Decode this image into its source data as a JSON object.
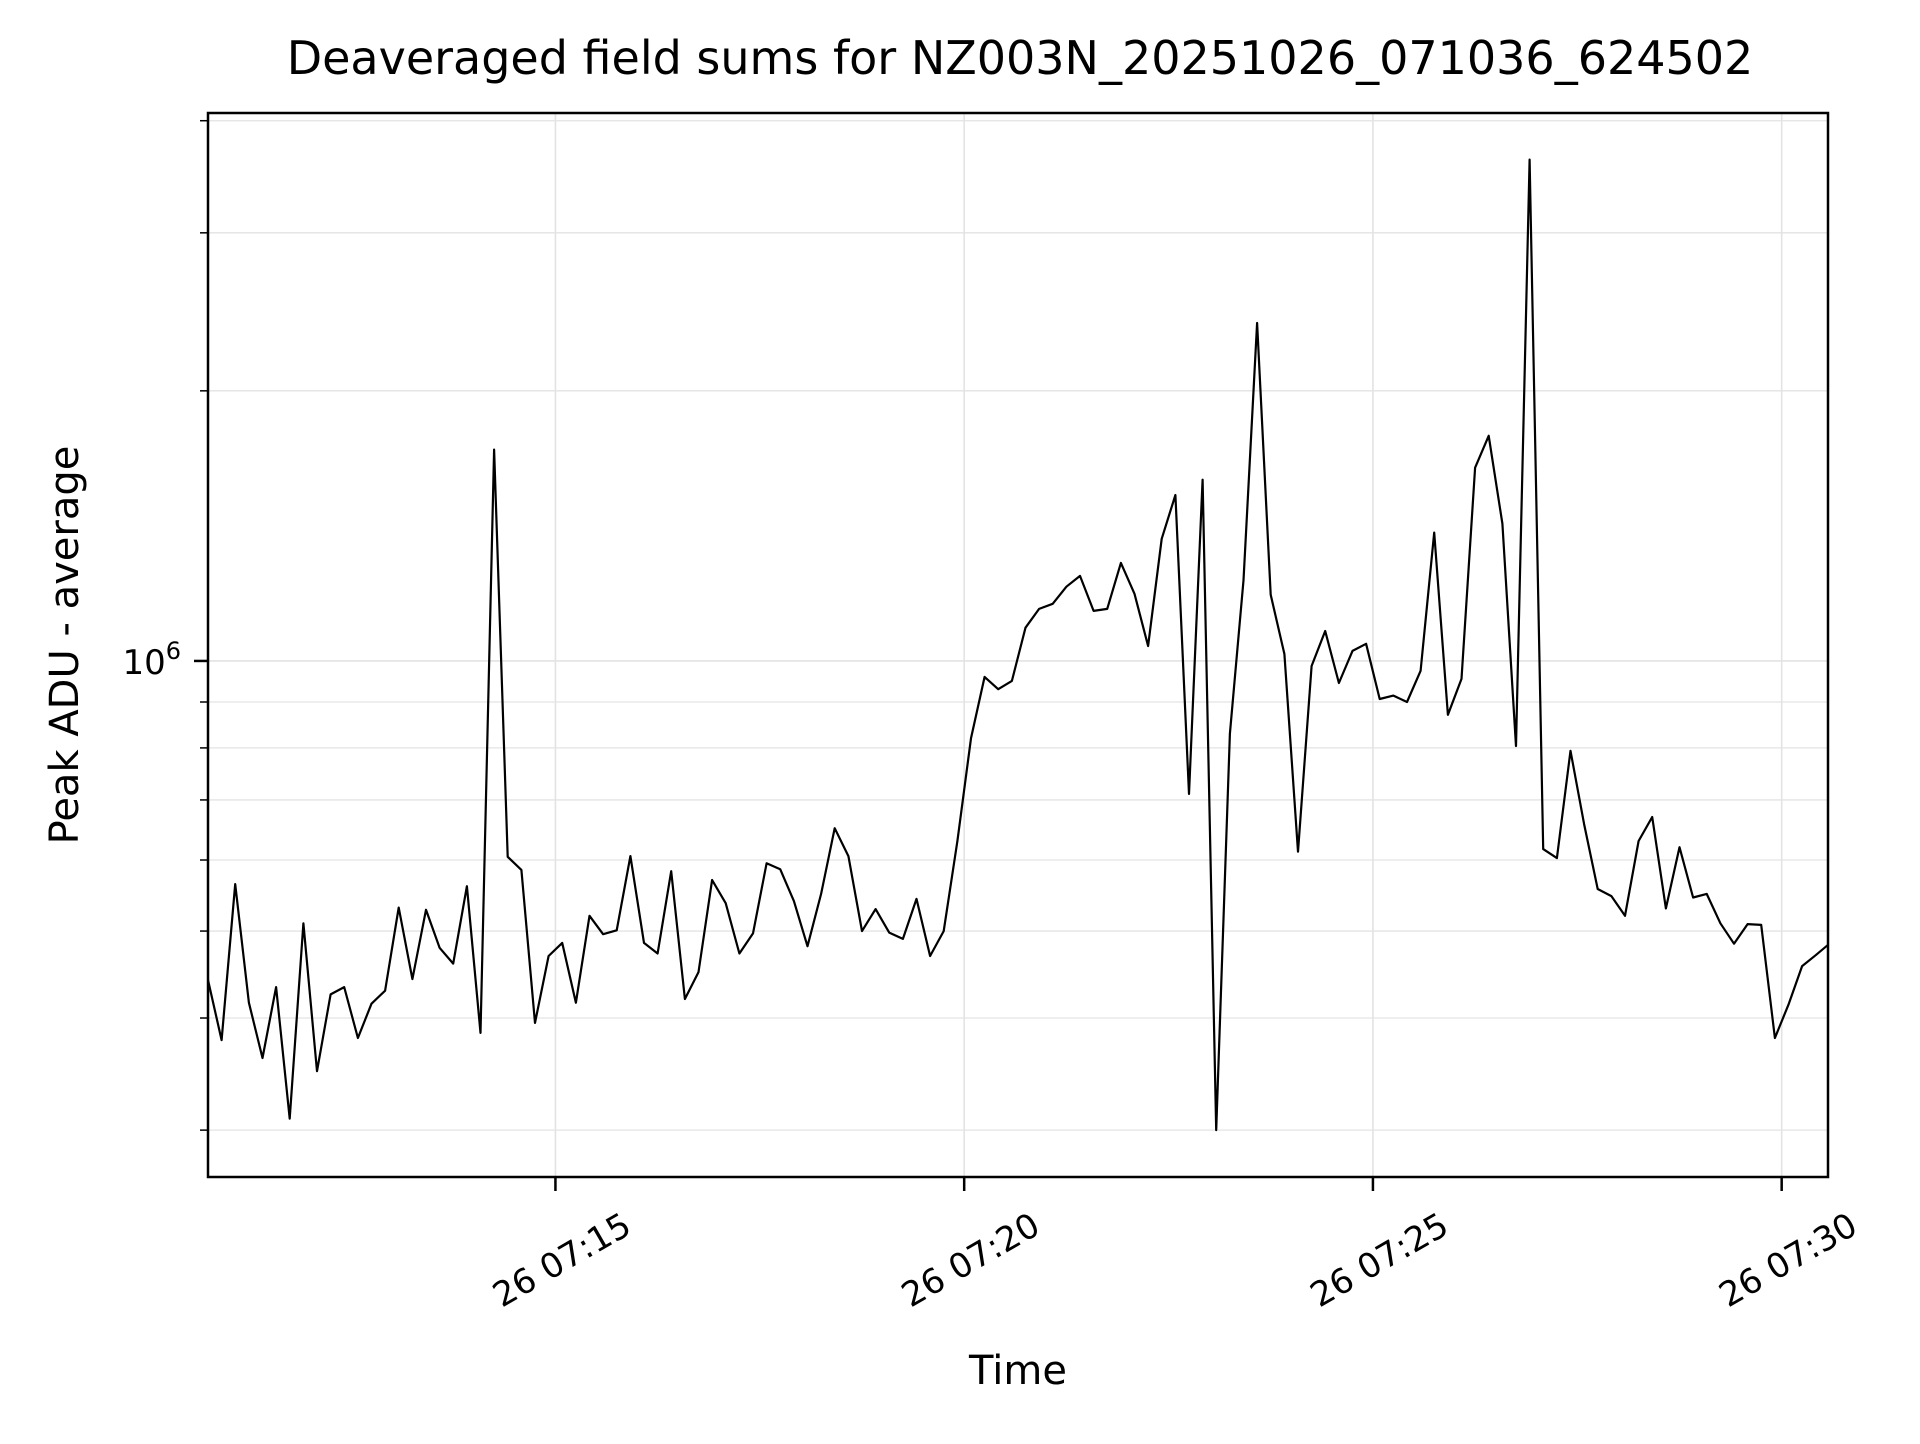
{
  "figure": {
    "background_color": "#ffffff",
    "trace_color": "#000000",
    "grid_color": "#e3e3e3",
    "spine_color": "#000000"
  },
  "chart_data": {
    "type": "line",
    "title": "Deaveraged field sums for NZ003N_20251026_071036_624502",
    "xlabel": "Time",
    "ylabel": "Peak ADU - average",
    "yscale": "log",
    "grid": true,
    "legend": "none",
    "line_color": "#000000",
    "xlim_seconds_since_0700": [
      645,
      1834
    ],
    "ylim": [
      266000,
      4080000
    ],
    "x_ticks": [
      {
        "t": 900,
        "label": "26 07:15"
      },
      {
        "t": 1200,
        "label": "26 07:20"
      },
      {
        "t": 1500,
        "label": "26 07:25"
      },
      {
        "t": 1800,
        "label": "26 07:30"
      }
    ],
    "y_major_ticks": [
      {
        "value": 1000000,
        "base": "10",
        "exponent": "6"
      }
    ],
    "y_minor_ticks": [
      300000,
      400000,
      500000,
      600000,
      700000,
      800000,
      900000,
      2000000,
      3000000,
      4000000
    ],
    "x_start_seconds_since_0700": 645,
    "x_start_label": "26 07:10:45",
    "x_step_seconds": 10,
    "values": [
      441000,
      378000,
      564000,
      416000,
      361000,
      433000,
      309000,
      510000,
      349000,
      425000,
      433000,
      380000,
      415000,
      429000,
      531000,
      442000,
      528000,
      479000,
      460000,
      561000,
      385000,
      1720000,
      605000,
      585000,
      395000,
      469000,
      485000,
      416000,
      520000,
      496000,
      501000,
      606000,
      485000,
      472000,
      583000,
      420000,
      450000,
      570000,
      537000,
      472000,
      497000,
      595000,
      586000,
      540000,
      481000,
      550000,
      651000,
      606000,
      500000,
      529000,
      498000,
      490000,
      543000,
      469000,
      500000,
      630000,
      820000,
      960000,
      930000,
      950000,
      1089000,
      1143000,
      1158000,
      1210000,
      1244000,
      1137000,
      1143000,
      1286000,
      1188000,
      1039000,
      1368000,
      1531000,
      711000,
      1592000,
      300000,
      830000,
      1230000,
      2380000,
      1185000,
      1018000,
      613000,
      987000,
      1080000,
      945000,
      1026000,
      1045000,
      907000,
      915000,
      900000,
      975000,
      1390000,
      871000,
      955000,
      1642000,
      1782000,
      1422000,
      804000,
      3620000,
      617000,
      603000,
      794000,
      658000,
      557000,
      547000,
      520000,
      630000,
      670000,
      530000,
      620000,
      545000,
      550000,
      510000,
      484000,
      509000,
      508000,
      380000,
      414000,
      457000,
      470000,
      484000
    ]
  }
}
